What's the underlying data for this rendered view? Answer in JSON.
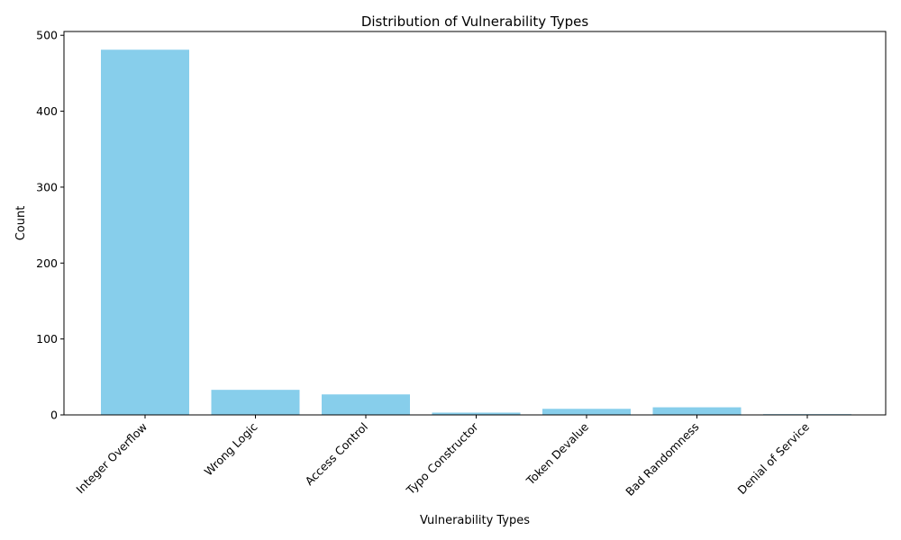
{
  "chart_data": {
    "type": "bar",
    "title": "Distribution of Vulnerability Types",
    "xlabel": "Vulnerability Types",
    "ylabel": "Count",
    "categories": [
      "Integer Overflow",
      "Wrong Logic",
      "Access Control",
      "Typo Constructor",
      "Token Devalue",
      "Bad Randomness",
      "Denial of Service"
    ],
    "values": [
      481,
      33,
      27,
      3,
      8,
      10,
      1
    ],
    "ylim": [
      0,
      505
    ],
    "yticks": [
      0,
      100,
      200,
      300,
      400,
      500
    ],
    "grid": false,
    "bar_color": "#87CEEB"
  }
}
